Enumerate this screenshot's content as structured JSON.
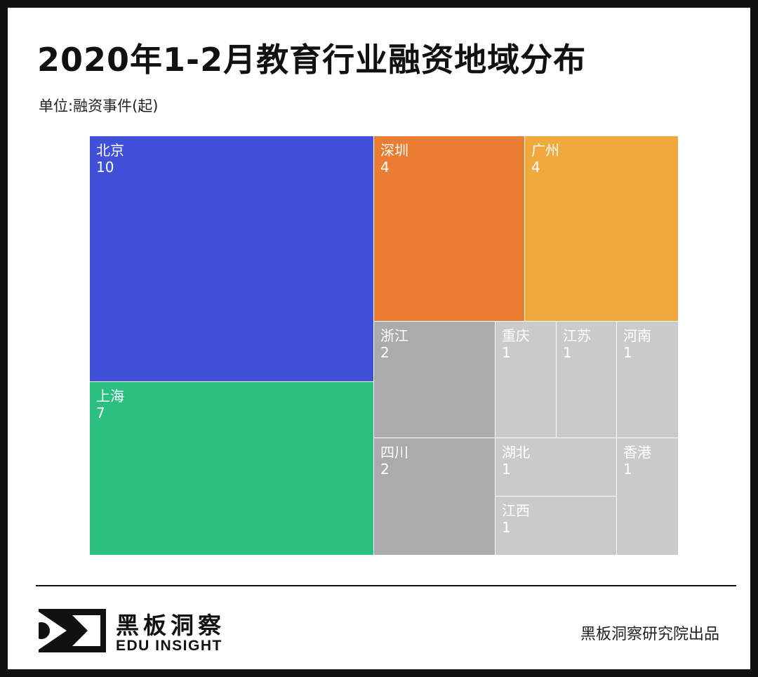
{
  "header": {
    "title": "2020年1-2月教育行业融资地域分布",
    "unit": "单位:融资事件(起)"
  },
  "chart_data": {
    "type": "treemap",
    "title": "2020年1-2月教育行业融资地域分布",
    "unit": "单位:融资事件(起)",
    "items": [
      {
        "name": "北京",
        "value": 10,
        "color": "#4050D9"
      },
      {
        "name": "上海",
        "value": 7,
        "color": "#2BBF80"
      },
      {
        "name": "深圳",
        "value": 4,
        "color": "#EB7D32"
      },
      {
        "name": "广州",
        "value": 4,
        "color": "#F0A93D"
      },
      {
        "name": "浙江",
        "value": 2,
        "color": "#ABABAB"
      },
      {
        "name": "四川",
        "value": 2,
        "color": "#ABABAB"
      },
      {
        "name": "重庆",
        "value": 1,
        "color": "#CACACA"
      },
      {
        "name": "江苏",
        "value": 1,
        "color": "#CACACA"
      },
      {
        "name": "河南",
        "value": 1,
        "color": "#CACACA"
      },
      {
        "name": "湖北",
        "value": 1,
        "color": "#CACACA"
      },
      {
        "name": "江西",
        "value": 1,
        "color": "#CACACA"
      },
      {
        "name": "香港",
        "value": 1,
        "color": "#CACACA"
      }
    ]
  },
  "footer": {
    "brand_cn": "黑板洞察",
    "brand_en": "EDU INSIGHT",
    "publisher": "黑板洞察研究院出品"
  }
}
